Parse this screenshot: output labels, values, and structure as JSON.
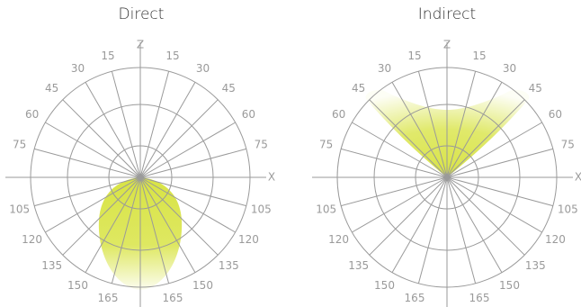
{
  "panels": {
    "direct": {
      "title": "Direct",
      "lobe_color": "#d6e23a",
      "ticks_left": [
        "165",
        "150",
        "135",
        "120",
        "105",
        "75",
        "60",
        "45",
        "30",
        "15"
      ],
      "ticks_right": [
        "165",
        "150",
        "135",
        "120",
        "105",
        "75",
        "60",
        "45",
        "30",
        "15"
      ],
      "axis_z": "Z",
      "axis_x": "X"
    },
    "indirect": {
      "title": "Indirect",
      "lobe_color": "#d6e23a",
      "ticks_left": [
        "165",
        "150",
        "135",
        "120",
        "105",
        "75",
        "60",
        "45",
        "30",
        "15"
      ],
      "ticks_right": [
        "165",
        "150",
        "135",
        "120",
        "105",
        "75",
        "60",
        "45",
        "30",
        "15"
      ],
      "axis_z": "Z",
      "axis_x": "X"
    }
  },
  "grid_color": "#9a9a9a"
}
